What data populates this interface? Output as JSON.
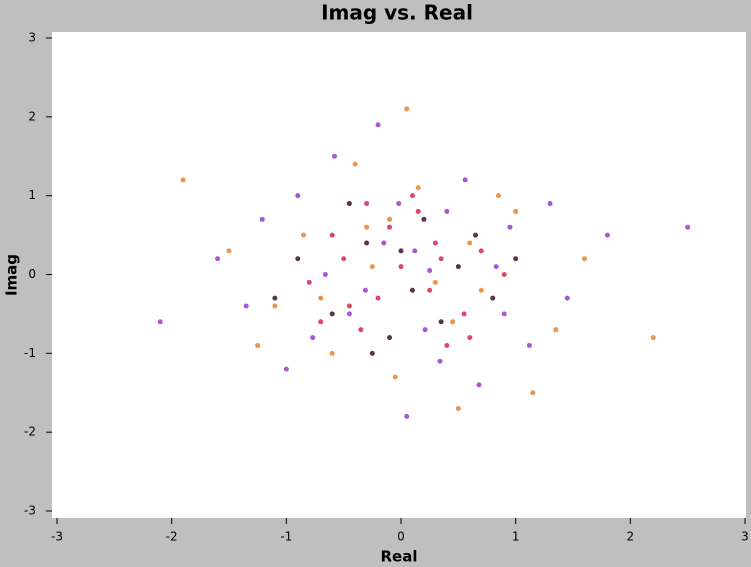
{
  "chart_data": {
    "type": "scatter",
    "title": "Imag vs. Real",
    "x_label": "Real",
    "y_label": "Imag",
    "xlim": [
      -3,
      3
    ],
    "ylim": [
      -3,
      3
    ],
    "xticks": [
      -3,
      -2,
      -1,
      0,
      1,
      2,
      3
    ],
    "yticks": [
      -3,
      -2,
      -1,
      0,
      1,
      2,
      3
    ],
    "grid": false,
    "series": [
      {
        "color": "#9a3ad0",
        "x": [
          0.12,
          -0.45,
          0.83,
          -1.21,
          0.34,
          -0.02,
          1.45,
          -0.77,
          0.56,
          -1.6,
          0.95,
          -0.31,
          0.21,
          -0.9,
          1.12,
          -0.15,
          0.68,
          -1.35,
          0.4,
          -0.58,
          1.8,
          -2.1,
          0.05,
          -0.66,
          0.9,
          -0.2,
          1.3,
          -1.0,
          0.25,
          2.5
        ],
        "y": [
          0.3,
          -0.5,
          0.1,
          0.7,
          -1.1,
          0.9,
          -0.3,
          -0.8,
          1.2,
          0.2,
          0.6,
          -0.2,
          -0.7,
          1.0,
          -0.9,
          0.4,
          -1.4,
          -0.4,
          0.8,
          1.5,
          0.5,
          -0.6,
          -1.8,
          0.0,
          -0.5,
          1.9,
          0.9,
          -1.2,
          0.05,
          0.6
        ]
      },
      {
        "color": "#e8822a",
        "x": [
          -0.3,
          0.7,
          -1.1,
          0.15,
          1.0,
          -0.6,
          0.45,
          -1.5,
          1.35,
          -0.05,
          0.6,
          -0.85,
          0.3,
          -0.4,
          1.6,
          -1.25,
          0.85,
          -0.1,
          -0.7,
          1.15,
          -1.9,
          0.5,
          2.2,
          -0.25,
          0.05
        ],
        "y": [
          0.6,
          -0.2,
          -0.4,
          1.1,
          0.8,
          -1.0,
          -0.6,
          0.3,
          -0.7,
          -1.3,
          0.4,
          0.5,
          -0.1,
          1.4,
          0.2,
          -0.9,
          1.0,
          0.7,
          -0.3,
          -1.5,
          1.2,
          -1.7,
          -0.8,
          0.1,
          2.1
        ]
      },
      {
        "color": "#d8284a",
        "x": [
          0.0,
          -0.2,
          0.3,
          -0.5,
          0.55,
          0.15,
          -0.35,
          0.7,
          -0.8,
          0.4,
          -0.1,
          0.25,
          -0.6,
          0.9,
          -0.45,
          0.1,
          0.6,
          -0.3,
          0.35,
          -0.7
        ],
        "y": [
          0.1,
          -0.3,
          0.4,
          0.2,
          -0.5,
          0.8,
          -0.7,
          0.3,
          -0.1,
          -0.9,
          0.6,
          -0.2,
          0.5,
          0.0,
          -0.4,
          1.0,
          -0.8,
          0.9,
          0.2,
          -0.6
        ]
      },
      {
        "color": "#3a1030",
        "x": [
          0.1,
          -0.3,
          0.5,
          -0.6,
          0.2,
          -0.1,
          0.8,
          -0.9,
          0.35,
          -0.45,
          0.65,
          0.0,
          -0.25,
          1.0,
          -1.1
        ],
        "y": [
          -0.2,
          0.4,
          0.1,
          -0.5,
          0.7,
          -0.8,
          -0.3,
          0.2,
          -0.6,
          0.9,
          0.5,
          0.3,
          -1.0,
          0.2,
          -0.3
        ]
      }
    ]
  }
}
